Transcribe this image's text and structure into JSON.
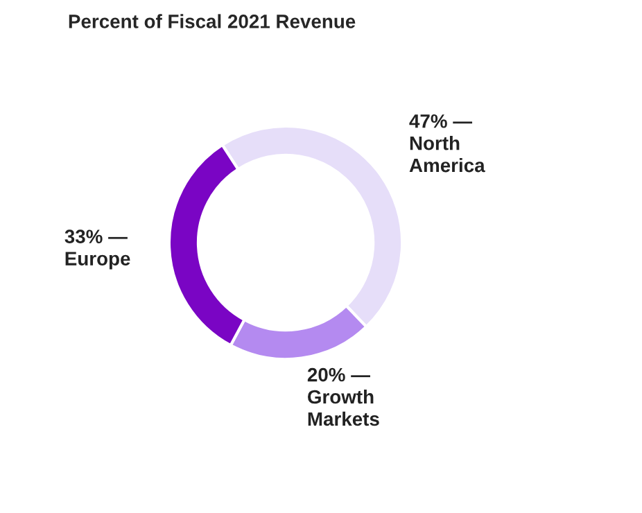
{
  "chart_data": {
    "type": "donut",
    "title": "Percent of Fiscal 2021 Revenue",
    "categories": [
      "North America",
      "Growth Markets",
      "Europe"
    ],
    "values": [
      47,
      20,
      33
    ],
    "colors": [
      "#e6def9",
      "#b48af0",
      "#7a05c4"
    ],
    "value_labels": [
      "47% —",
      "20% —",
      "33% —"
    ]
  }
}
